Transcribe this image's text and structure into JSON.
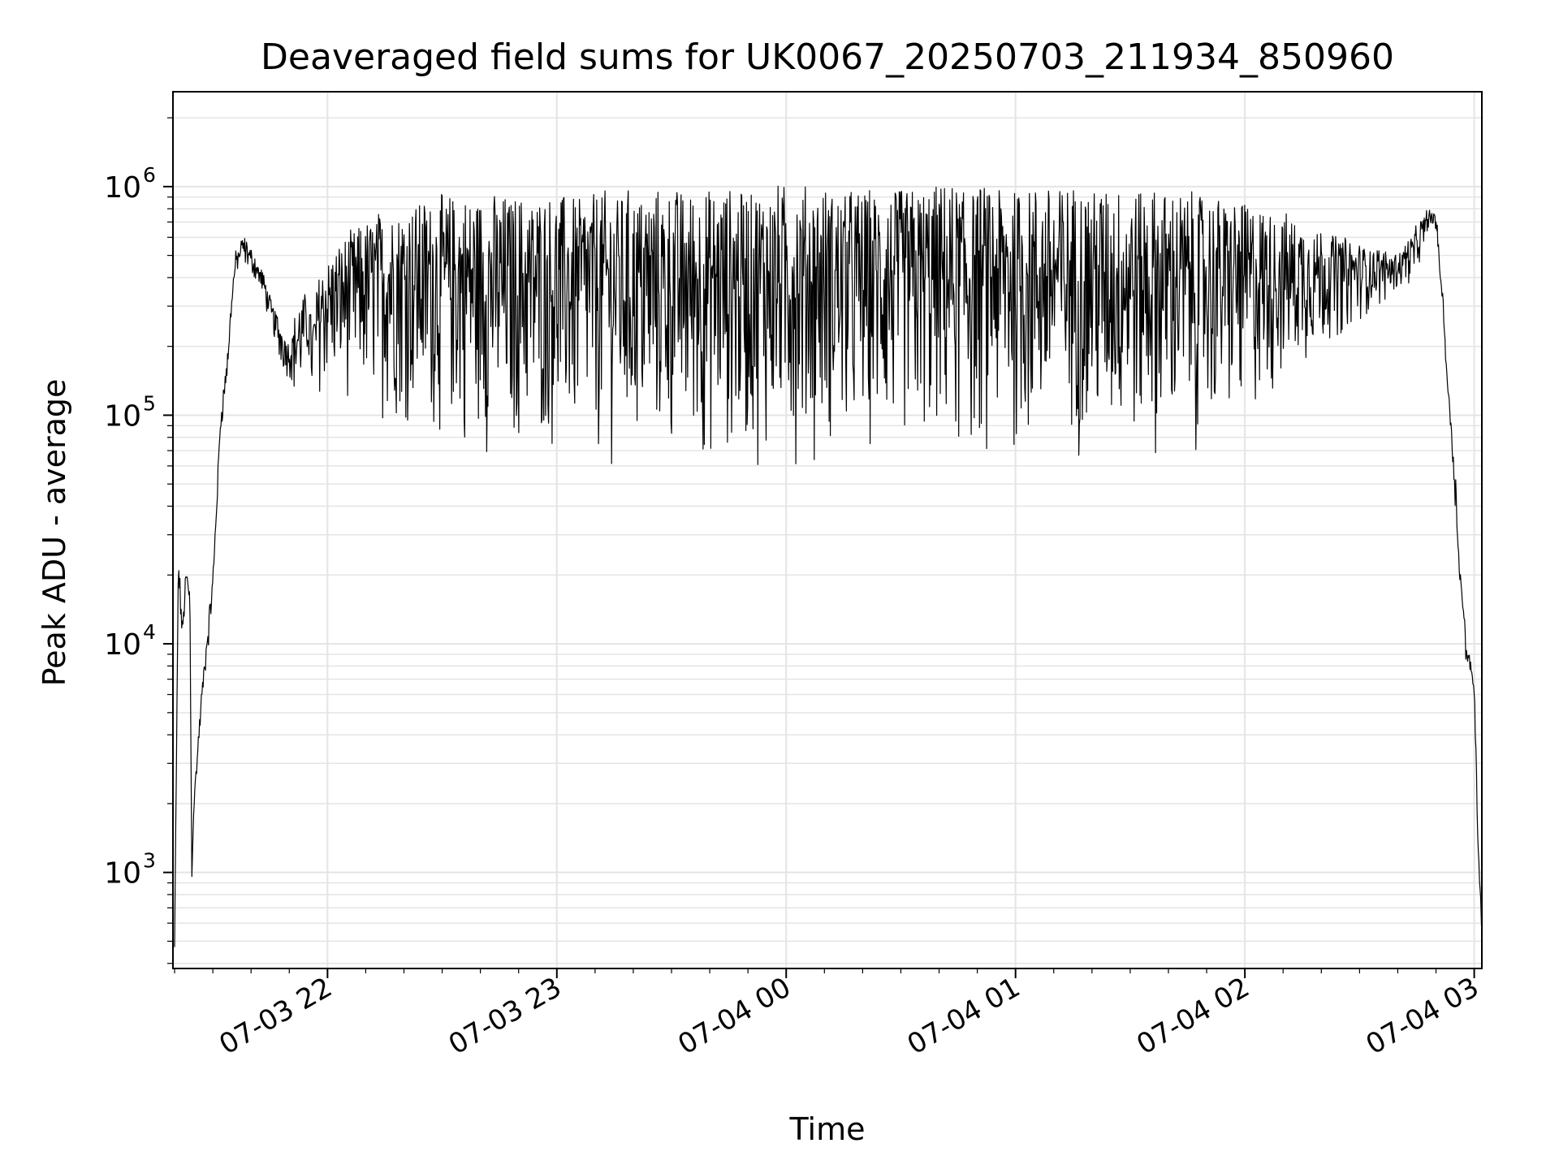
{
  "chart_data": {
    "type": "line",
    "title": "Deaveraged field sums for UK0067_20250703_211934_850960",
    "xlabel": "Time",
    "ylabel": "Peak ADU - average",
    "yscale": "log",
    "grid": "on (major and minor)",
    "line_color": "#000000",
    "xlim": [
      "2025-07-03 21:19:34",
      "2025-07-04 03:02:00"
    ],
    "ylim": [
      380,
      2600000
    ],
    "x_ticks": [
      "07-03 22",
      "07-03 23",
      "07-04 00",
      "07-04 01",
      "07-04 02",
      "07-04 03"
    ],
    "y_ticks": [
      {
        "base": "10",
        "exp": "3",
        "value": 1000
      },
      {
        "base": "10",
        "exp": "4",
        "value": 10000
      },
      {
        "base": "10",
        "exp": "5",
        "value": 100000
      },
      {
        "base": "10",
        "exp": "6",
        "value": 1000000
      }
    ],
    "series": [
      {
        "x": [
          "2025-07-03 21:20:00",
          "2025-07-03 21:21:00",
          "2025-07-03 21:22:00",
          "2025-07-03 21:23:00",
          "2025-07-03 21:24:00",
          "2025-07-03 21:24:30",
          "2025-07-03 21:25:00",
          "2025-07-03 21:27:00",
          "2025-07-03 21:30:00",
          "2025-07-03 21:32:00",
          "2025-07-03 21:34:00",
          "2025-07-03 21:35:00",
          "2025-07-03 21:36:00",
          "2025-07-03 21:38:00",
          "2025-07-03 21:40:00",
          "2025-07-03 21:43:00",
          "2025-07-03 21:45:00",
          "2025-07-03 21:48:00",
          "2025-07-03 21:50:00",
          "2025-07-03 21:52:00",
          "2025-07-03 21:55:00",
          "2025-07-03 21:56:00",
          "2025-07-03 21:58:00",
          "2025-07-03 22:05:00",
          "2025-07-03 22:15:00",
          "2025-07-03 22:30:00",
          "2025-07-03 22:45:00",
          "2025-07-03 23:00:00",
          "2025-07-03 23:20:00",
          "2025-07-03 23:40:00",
          "2025-07-04 00:00:00",
          "2025-07-04 00:20:00",
          "2025-07-04 00:40:00",
          "2025-07-04 01:00:00",
          "2025-07-04 01:20:00",
          "2025-07-04 01:40:00",
          "2025-07-04 02:00:00",
          "2025-07-04 02:15:00",
          "2025-07-04 02:30:00",
          "2025-07-04 02:40:00",
          "2025-07-04 02:45:00",
          "2025-07-04 02:48:00",
          "2025-07-04 02:50:00",
          "2025-07-04 02:52:00",
          "2025-07-04 02:53:00",
          "2025-07-04 02:55:00",
          "2025-07-04 02:56:00",
          "2025-07-04 02:58:00",
          "2025-07-04 03:00:00",
          "2025-07-04 03:01:00",
          "2025-07-04 03:02:00"
        ],
        "y": [
          500,
          26000,
          12000,
          22000,
          18000,
          1000,
          2000,
          6000,
          20000,
          100000,
          200000,
          350000,
          500000,
          600000,
          520000,
          420000,
          320000,
          250000,
          200000,
          300000,
          350000,
          250000,
          450000,
          600000,
          800000,
          900000,
          900000,
          900000,
          950000,
          950000,
          1000000,
          950000,
          1000000,
          1000000,
          1000000,
          950000,
          850000,
          700000,
          550000,
          500000,
          650000,
          800000,
          750000,
          300000,
          150000,
          60000,
          25000,
          10000,
          7000,
          1500,
          600
        ],
        "trough_y": [
          420,
          16000,
          10000,
          15000,
          12000,
          1000,
          1800,
          5000,
          15000,
          80000,
          150000,
          300000,
          420000,
          450000,
          420000,
          330000,
          250000,
          150000,
          150000,
          100000,
          150000,
          100000,
          120000,
          110000,
          90000,
          70000,
          60000,
          60000,
          55000,
          55000,
          60000,
          60000,
          60000,
          60000,
          60000,
          60000,
          80000,
          150000,
          250000,
          350000,
          400000,
          650000,
          650000,
          250000,
          120000,
          40000,
          20000,
          8000,
          6000,
          1200,
          500
        ]
      }
    ]
  }
}
